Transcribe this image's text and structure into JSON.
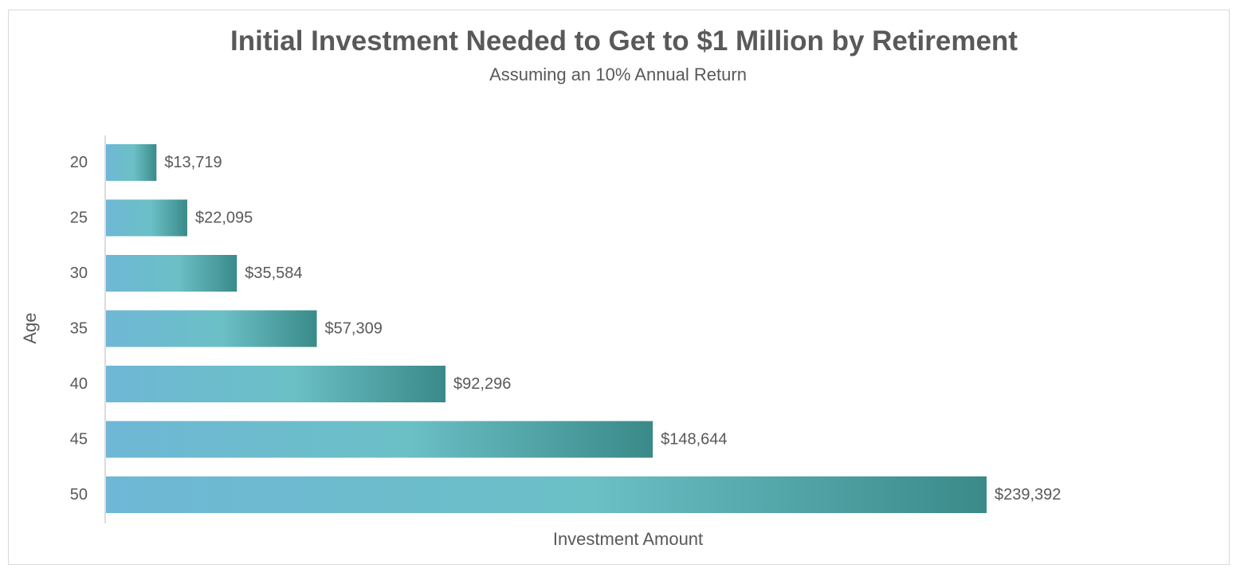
{
  "chart_data": {
    "type": "bar",
    "orientation": "horizontal",
    "title": "Initial Investment Needed to Get to $1 Million by Retirement",
    "subtitle": "Assuming an 10% Annual Return",
    "xlabel": "Investment Amount",
    "ylabel": "Age",
    "categories": [
      "20",
      "25",
      "30",
      "35",
      "40",
      "45",
      "50"
    ],
    "values": [
      13719,
      22095,
      35584,
      57309,
      92296,
      148644,
      239392
    ],
    "data_labels": [
      "$13,719",
      "$22,095",
      "$35,584",
      "$57,309",
      "$92,296",
      "$148,644",
      "$239,392"
    ],
    "xlim": [
      0,
      239392
    ],
    "grid": false,
    "legend": "none",
    "colors": {
      "bar_gradient_start": "#6fb7d6",
      "bar_gradient_mid": "#6bc0c6",
      "bar_gradient_end": "#3a8a89",
      "text": "#595959",
      "axis_line": "#d0d0d0",
      "frame_border": "#d9d9d9"
    }
  }
}
